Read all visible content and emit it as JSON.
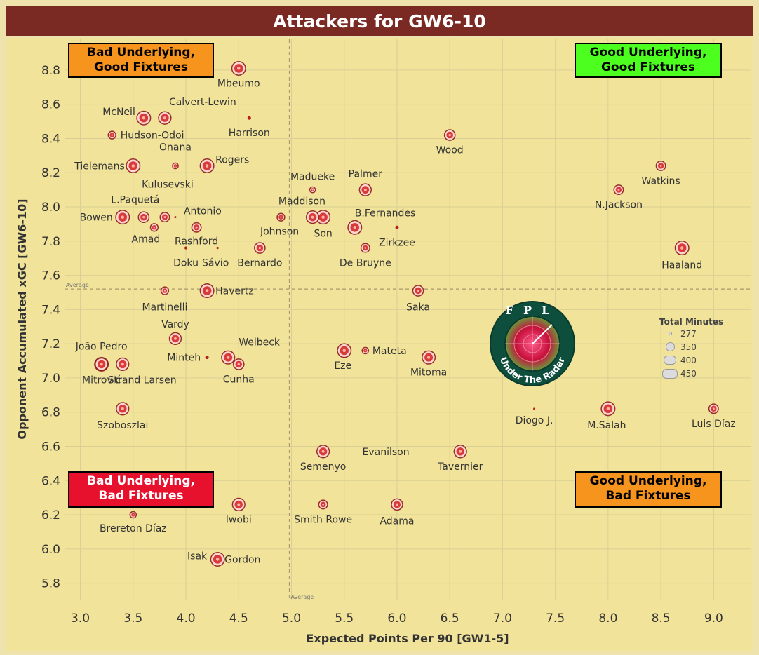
{
  "title": "Attackers for GW6-10",
  "colors": {
    "title_bg": "#7b2a23",
    "plot_bg": "#f1e39a",
    "marker": "#d93a3a",
    "marker_ring": "#8b1c1c",
    "quad_orange": "#f7941d",
    "quad_green": "#4cff1e",
    "quad_red": "#e8112d"
  },
  "quadrants": {
    "top_left": "Bad Underlying, Good Fixtures",
    "top_right": "Good Underlying, Good Fixtures",
    "bottom_left": "Bad Underlying, Bad Fixtures",
    "bottom_right": "Good Underlying, Bad Fixtures"
  },
  "legend": {
    "title": "Total Minutes",
    "items": [
      "277",
      "350",
      "400",
      "450"
    ]
  },
  "logo": {
    "top_text": "FPL",
    "bottom_text": "Under The Radar"
  },
  "chart_data": {
    "type": "scatter",
    "xlabel": "Expected Points Per 90 [GW1-5]",
    "ylabel": "Opponent Accumulated xGC [GW6-10]",
    "xlim": [
      2.85,
      9.35
    ],
    "ylim": [
      5.7,
      8.98
    ],
    "x_ticks": [
      "3.0",
      "3.5",
      "4.0",
      "4.5",
      "5.0",
      "5.5",
      "6.0",
      "6.5",
      "7.0",
      "7.5",
      "8.0",
      "8.5",
      "9.0"
    ],
    "y_ticks": [
      "5.8",
      "6.0",
      "6.2",
      "6.4",
      "6.6",
      "6.8",
      "7.0",
      "7.2",
      "7.4",
      "7.6",
      "7.8",
      "8.0",
      "8.2",
      "8.4",
      "8.6",
      "8.8"
    ],
    "reference_lines": {
      "x_average": 4.98,
      "y_average": 7.52,
      "label": "Average"
    },
    "size_by": "Total Minutes",
    "points": [
      {
        "name": "Mbeumo",
        "x": 4.5,
        "y": 8.81,
        "minutes": 450
      },
      {
        "name": "McNeil",
        "x": 3.6,
        "y": 8.52,
        "minutes": 450
      },
      {
        "name": "Calvert-Lewin",
        "x": 3.8,
        "y": 8.52,
        "minutes": 430
      },
      {
        "name": "Harrison",
        "x": 4.6,
        "y": 8.52,
        "minutes": 300
      },
      {
        "name": "Hudson-Odoi",
        "x": 3.3,
        "y": 8.42,
        "minutes": 350
      },
      {
        "name": "Wood",
        "x": 6.5,
        "y": 8.42,
        "minutes": 400
      },
      {
        "name": "Tielemans",
        "x": 3.5,
        "y": 8.24,
        "minutes": 450
      },
      {
        "name": "Onana",
        "x": 3.9,
        "y": 8.24,
        "minutes": 320
      },
      {
        "name": "Rogers",
        "x": 4.2,
        "y": 8.24,
        "minutes": 450
      },
      {
        "name": "Watkins",
        "x": 8.5,
        "y": 8.24,
        "minutes": 380
      },
      {
        "name": "Madueke",
        "x": 5.2,
        "y": 8.1,
        "minutes": 320
      },
      {
        "name": "Palmer",
        "x": 5.7,
        "y": 8.1,
        "minutes": 420
      },
      {
        "name": "N.Jackson",
        "x": 8.1,
        "y": 8.1,
        "minutes": 380
      },
      {
        "name": "Bowen",
        "x": 3.4,
        "y": 7.94,
        "minutes": 450
      },
      {
        "name": "L.Paquetá",
        "x": 3.6,
        "y": 7.94,
        "minutes": 400
      },
      {
        "name": "Kulusevski",
        "x": 3.8,
        "y": 7.94,
        "minutes": 380
      },
      {
        "name": "Antonio",
        "x": 3.9,
        "y": 7.94,
        "minutes": 277
      },
      {
        "name": "Maddison",
        "x": 4.9,
        "y": 7.94,
        "minutes": 350
      },
      {
        "name": "Son",
        "x": 5.3,
        "y": 7.94,
        "minutes": 450
      },
      {
        "name": "Johnson",
        "x": 5.2,
        "y": 7.94,
        "minutes": 430
      },
      {
        "name": "B.Fernandes",
        "x": 5.6,
        "y": 7.88,
        "minutes": 450
      },
      {
        "name": "Amad",
        "x": 3.7,
        "y": 7.88,
        "minutes": 350
      },
      {
        "name": "Rashford",
        "x": 4.1,
        "y": 7.88,
        "minutes": 380
      },
      {
        "name": "Zirkzee",
        "x": 6.0,
        "y": 7.88,
        "minutes": 300
      },
      {
        "name": "Doku",
        "x": 4.0,
        "y": 7.76,
        "minutes": 290
      },
      {
        "name": "Sávio",
        "x": 4.3,
        "y": 7.76,
        "minutes": 280
      },
      {
        "name": "Bernardo",
        "x": 4.7,
        "y": 7.76,
        "minutes": 400
      },
      {
        "name": "De Bruyne",
        "x": 5.7,
        "y": 7.76,
        "minutes": 370
      },
      {
        "name": "Haaland",
        "x": 8.7,
        "y": 7.76,
        "minutes": 450
      },
      {
        "name": "Martinelli",
        "x": 3.8,
        "y": 7.51,
        "minutes": 350
      },
      {
        "name": "Havertz",
        "x": 4.2,
        "y": 7.51,
        "minutes": 450
      },
      {
        "name": "Saka",
        "x": 6.2,
        "y": 7.51,
        "minutes": 400
      },
      {
        "name": "Vardy",
        "x": 3.9,
        "y": 7.23,
        "minutes": 420
      },
      {
        "name": "João Pedro",
        "x": 3.2,
        "y": 7.08,
        "minutes": 450
      },
      {
        "name": "Mitrović",
        "x": 3.2,
        "y": 7.08,
        "minutes": 430
      },
      {
        "name": "Strand Larsen",
        "x": 3.4,
        "y": 7.08,
        "minutes": 430
      },
      {
        "name": "Welbeck",
        "x": 4.4,
        "y": 7.12,
        "minutes": 440
      },
      {
        "name": "Minteh",
        "x": 4.2,
        "y": 7.12,
        "minutes": 300
      },
      {
        "name": "Cunha",
        "x": 4.5,
        "y": 7.08,
        "minutes": 400
      },
      {
        "name": "Eze",
        "x": 5.5,
        "y": 7.16,
        "minutes": 450
      },
      {
        "name": "Mateta",
        "x": 5.7,
        "y": 7.16,
        "minutes": 330
      },
      {
        "name": "Mitoma",
        "x": 6.3,
        "y": 7.12,
        "minutes": 440
      },
      {
        "name": "Szoboszlai",
        "x": 3.4,
        "y": 6.82,
        "minutes": 430
      },
      {
        "name": "Diogo J.",
        "x": 7.3,
        "y": 6.82,
        "minutes": 277
      },
      {
        "name": "M.Salah",
        "x": 8.0,
        "y": 6.82,
        "minutes": 450
      },
      {
        "name": "Luis Díaz",
        "x": 9.0,
        "y": 6.82,
        "minutes": 380
      },
      {
        "name": "Semenyo",
        "x": 5.3,
        "y": 6.57,
        "minutes": 430
      },
      {
        "name": "Tavernier",
        "x": 6.6,
        "y": 6.57,
        "minutes": 430
      },
      {
        "name": "Evanilson",
        "x": 6.2,
        "y": 6.57,
        "minutes": 0
      },
      {
        "name": "Brereton Díaz",
        "x": 3.5,
        "y": 6.2,
        "minutes": 330
      },
      {
        "name": "Iwobi",
        "x": 4.5,
        "y": 6.26,
        "minutes": 430
      },
      {
        "name": "Smith Rowe",
        "x": 5.3,
        "y": 6.26,
        "minutes": 370
      },
      {
        "name": "Adama",
        "x": 6.0,
        "y": 6.26,
        "minutes": 410
      },
      {
        "name": "Isak",
        "x": 4.3,
        "y": 5.94,
        "minutes": 0
      },
      {
        "name": "Gordon",
        "x": 4.3,
        "y": 5.94,
        "minutes": 450
      }
    ]
  }
}
